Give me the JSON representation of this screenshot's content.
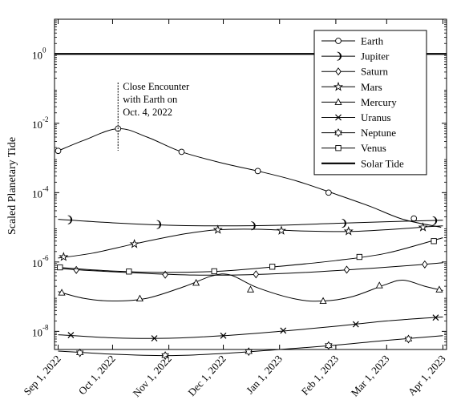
{
  "chart_data": {
    "type": "line",
    "ylabel": "Scaled Planetary Tide",
    "xlabel": "",
    "y_scale": "log",
    "ylim": [
      3e-09,
      10
    ],
    "xlim": [
      "2022-08-30",
      "2023-04-03"
    ],
    "grid": false,
    "legend_position": "top-right",
    "x_ticks": [
      {
        "date": "2022-09-01",
        "label": "Sep 1, 2022"
      },
      {
        "date": "2022-10-01",
        "label": "Oct 1, 2022"
      },
      {
        "date": "2022-11-01",
        "label": "Nov 1, 2022"
      },
      {
        "date": "2022-12-01",
        "label": "Dec 1, 2022"
      },
      {
        "date": "2023-01-01",
        "label": "Jan 1, 2023"
      },
      {
        "date": "2023-02-01",
        "label": "Feb 1, 2023"
      },
      {
        "date": "2023-03-01",
        "label": "Mar 1, 2023"
      },
      {
        "date": "2023-04-01",
        "label": "Apr 1, 2023"
      }
    ],
    "y_ticks": [
      {
        "value": 1,
        "base": "10",
        "exp": "0"
      },
      {
        "value": 0.01,
        "base": "10",
        "exp": "-2"
      },
      {
        "value": 0.0001,
        "base": "10",
        "exp": "-4"
      },
      {
        "value": 1e-06,
        "base": "10",
        "exp": "-6"
      },
      {
        "value": 1e-08,
        "base": "10",
        "exp": "-8"
      }
    ],
    "annotation": {
      "lines": [
        "Close Encounter",
        "with Earth on",
        "Oct. 4, 2022"
      ],
      "date": "2022-10-04"
    },
    "series": [
      {
        "name": "Earth",
        "marker": "circle",
        "width": 1,
        "points": [
          [
            "2022-09-01",
            0.0016
          ],
          [
            "2022-09-15",
            0.0032
          ],
          [
            "2022-10-04",
            0.007
          ],
          [
            "2022-10-20",
            0.004
          ],
          [
            "2022-11-08",
            0.0015
          ],
          [
            "2022-12-01",
            0.0007
          ],
          [
            "2022-12-20",
            0.00042
          ],
          [
            "2023-01-10",
            0.00022
          ],
          [
            "2023-02-01",
            9e-05
          ],
          [
            "2023-02-20",
            4e-05
          ],
          [
            "2023-03-10",
            1.7e-05
          ],
          [
            "2023-03-31",
            1e-05
          ]
        ],
        "markers": [
          [
            "2022-09-01",
            0.0016
          ],
          [
            "2022-10-04",
            0.007
          ],
          [
            "2022-11-08",
            0.0015
          ],
          [
            "2022-12-20",
            0.00042
          ],
          [
            "2023-01-28",
            0.0001
          ],
          [
            "2023-03-16",
            1.8e-05
          ]
        ]
      },
      {
        "name": "Jupiter",
        "marker": "crescent",
        "width": 1,
        "points": [
          [
            "2022-09-01",
            1.7e-05
          ],
          [
            "2022-10-01",
            1.35e-05
          ],
          [
            "2022-11-01",
            1.15e-05
          ],
          [
            "2022-12-01",
            1.1e-05
          ],
          [
            "2023-01-01",
            1.15e-05
          ],
          [
            "2023-02-01",
            1.3e-05
          ],
          [
            "2023-03-01",
            1.45e-05
          ],
          [
            "2023-04-01",
            1.6e-05
          ]
        ],
        "markers": [
          [
            "2022-09-07",
            1.65e-05
          ],
          [
            "2022-10-26",
            1.2e-05
          ],
          [
            "2022-12-17",
            1.1e-05
          ],
          [
            "2023-02-05",
            1.3e-05
          ],
          [
            "2023-03-27",
            1.55e-05
          ]
        ]
      },
      {
        "name": "Saturn",
        "marker": "diamond",
        "width": 1,
        "points": [
          [
            "2022-09-01",
            6.5e-07
          ],
          [
            "2022-09-15",
            5.8e-07
          ],
          [
            "2022-10-15",
            4.8e-07
          ],
          [
            "2022-11-15",
            4.2e-07
          ],
          [
            "2022-12-15",
            4.3e-07
          ],
          [
            "2023-01-15",
            5e-07
          ],
          [
            "2023-02-15",
            6.3e-07
          ],
          [
            "2023-03-15",
            8e-07
          ],
          [
            "2023-04-01",
            9.5e-07
          ]
        ],
        "markers": [
          [
            "2022-09-11",
            5.9e-07
          ],
          [
            "2022-10-30",
            4.3e-07
          ],
          [
            "2022-12-19",
            4.4e-07
          ],
          [
            "2023-02-07",
            6e-07
          ],
          [
            "2023-03-22",
            8.5e-07
          ]
        ]
      },
      {
        "name": "Mars",
        "marker": "star",
        "width": 1,
        "points": [
          [
            "2022-09-01",
            1.3e-06
          ],
          [
            "2022-09-20",
            1.8e-06
          ],
          [
            "2022-10-15",
            3.5e-06
          ],
          [
            "2022-11-10",
            6.5e-06
          ],
          [
            "2022-11-28",
            8.5e-06
          ],
          [
            "2022-12-20",
            8.8e-06
          ],
          [
            "2023-01-15",
            7.8e-06
          ],
          [
            "2023-02-10",
            7.6e-06
          ],
          [
            "2023-03-05",
            8.8e-06
          ],
          [
            "2023-03-25",
            1.05e-05
          ],
          [
            "2023-04-01",
            1.1e-05
          ]
        ],
        "markers": [
          [
            "2022-09-04",
            1.4e-06
          ],
          [
            "2022-10-13",
            3.3e-06
          ],
          [
            "2022-11-28",
            8.5e-06
          ],
          [
            "2023-01-02",
            8e-06
          ],
          [
            "2023-02-08",
            7.7e-06
          ],
          [
            "2023-03-21",
            1e-05
          ]
        ]
      },
      {
        "name": "Mercury",
        "marker": "triangle",
        "width": 1,
        "points": [
          [
            "2022-09-01",
            1.4e-07
          ],
          [
            "2022-09-15",
            9e-08
          ],
          [
            "2022-10-01",
            7.5e-08
          ],
          [
            "2022-10-20",
            9e-08
          ],
          [
            "2022-11-10",
            2e-07
          ],
          [
            "2022-11-25",
            4e-07
          ],
          [
            "2022-12-05",
            4.2e-07
          ],
          [
            "2022-12-20",
            1.8e-07
          ],
          [
            "2023-01-10",
            8.5e-08
          ],
          [
            "2023-01-25",
            7.5e-08
          ],
          [
            "2023-02-10",
            1e-07
          ],
          [
            "2023-02-28",
            2.2e-07
          ],
          [
            "2023-03-10",
            3e-07
          ],
          [
            "2023-03-22",
            2e-07
          ],
          [
            "2023-04-01",
            1.5e-07
          ]
        ],
        "markers": [
          [
            "2022-09-03",
            1.3e-07
          ],
          [
            "2022-10-16",
            8.8e-08
          ],
          [
            "2022-11-16",
            2.5e-07
          ],
          [
            "2022-12-16",
            1.6e-07
          ],
          [
            "2023-01-25",
            7.5e-08
          ],
          [
            "2023-02-25",
            2.1e-07
          ],
          [
            "2023-03-30",
            1.6e-07
          ]
        ]
      },
      {
        "name": "Uranus",
        "marker": "x",
        "width": 1,
        "points": [
          [
            "2022-09-01",
            8e-09
          ],
          [
            "2022-10-01",
            6.5e-09
          ],
          [
            "2022-11-01",
            6.3e-09
          ],
          [
            "2022-12-01",
            7.5e-09
          ],
          [
            "2023-01-01",
            1e-08
          ],
          [
            "2023-02-01",
            1.4e-08
          ],
          [
            "2023-03-01",
            2e-08
          ],
          [
            "2023-04-01",
            2.6e-08
          ]
        ],
        "markers": [
          [
            "2022-09-08",
            7.8e-09
          ],
          [
            "2022-10-24",
            6.3e-09
          ],
          [
            "2022-12-01",
            7.5e-09
          ],
          [
            "2023-01-03",
            1.05e-08
          ],
          [
            "2023-02-12",
            1.6e-08
          ],
          [
            "2023-03-28",
            2.5e-08
          ]
        ]
      },
      {
        "name": "Neptune",
        "marker": "hexagram",
        "width": 1,
        "points": [
          [
            "2022-09-01",
            2.7e-09
          ],
          [
            "2022-10-01",
            2.2e-09
          ],
          [
            "2022-11-01",
            2e-09
          ],
          [
            "2022-12-01",
            2.3e-09
          ],
          [
            "2023-01-01",
            3e-09
          ],
          [
            "2023-02-01",
            4e-09
          ],
          [
            "2023-03-01",
            5.5e-09
          ],
          [
            "2023-04-01",
            7.5e-09
          ]
        ],
        "markers": [
          [
            "2022-09-13",
            2.4e-09
          ],
          [
            "2022-10-30",
            2e-09
          ],
          [
            "2022-12-15",
            2.6e-09
          ],
          [
            "2023-01-28",
            3.9e-09
          ],
          [
            "2023-03-13",
            6e-09
          ]
        ]
      },
      {
        "name": "Venus",
        "marker": "square",
        "width": 1,
        "points": [
          [
            "2022-09-01",
            7e-07
          ],
          [
            "2022-10-01",
            5.5e-07
          ],
          [
            "2022-11-01",
            5e-07
          ],
          [
            "2022-12-01",
            5.5e-07
          ],
          [
            "2023-01-01",
            7.5e-07
          ],
          [
            "2023-02-01",
            1.1e-06
          ],
          [
            "2023-03-01",
            1.8e-06
          ],
          [
            "2023-04-01",
            5e-06
          ]
        ],
        "markers": [
          [
            "2022-09-02",
            7e-07
          ],
          [
            "2022-10-10",
            5.3e-07
          ],
          [
            "2022-11-26",
            5.4e-07
          ],
          [
            "2022-12-28",
            7.3e-07
          ],
          [
            "2023-02-14",
            1.4e-06
          ],
          [
            "2023-03-27",
            4e-06
          ]
        ]
      },
      {
        "name": "Solar Tide",
        "marker": "none",
        "width": 2.2,
        "points": [
          [
            "2022-08-30",
            1
          ],
          [
            "2023-04-03",
            1
          ]
        ],
        "markers": []
      }
    ]
  }
}
